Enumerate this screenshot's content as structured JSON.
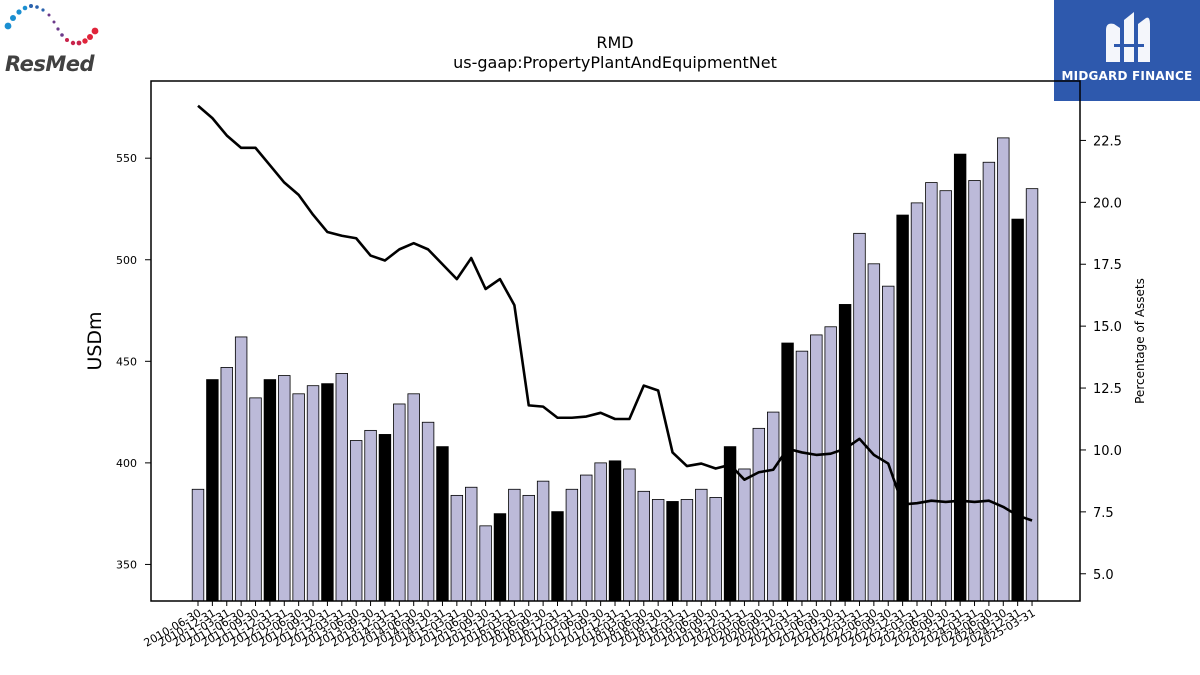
{
  "brand": {
    "company_logo_text": "ResMed",
    "watermark_text": "MIDGARD FINANCE",
    "badge_color": "#2e59ad",
    "logo_dot_colors": [
      "#1b8fd1",
      "#2a62ad",
      "#6b3a8a",
      "#c8234b",
      "#e0243a"
    ]
  },
  "chart_data": {
    "type": "bar",
    "title": "RMD",
    "subtitle": "us-gaap:PropertyPlantAndEquipmentNet",
    "ylabel": "USDm",
    "y2label": "Percentage of Assets",
    "ylim": [
      332,
      588
    ],
    "y2lim": [
      3.9,
      24.9
    ],
    "yticks": [
      350,
      400,
      450,
      500,
      550
    ],
    "y2ticks": [
      "5.0",
      "7.5",
      "10.0",
      "12.5",
      "15.0",
      "17.5",
      "20.0",
      "22.5"
    ],
    "bar_colors": {
      "default": "#bcbad9",
      "highlight": "#000000"
    },
    "line_color": "#000000",
    "categories": [
      "2010-06-30",
      "2010-12-31",
      "2011-03-31",
      "2011-06-30",
      "2011-09-30",
      "2011-12-31",
      "2012-03-31",
      "2012-06-30",
      "2012-09-30",
      "2012-12-31",
      "2013-03-31",
      "2013-06-30",
      "2013-09-30",
      "2013-12-31",
      "2014-03-31",
      "2014-06-30",
      "2014-09-30",
      "2014-12-31",
      "2015-03-31",
      "2015-06-30",
      "2015-09-30",
      "2015-12-31",
      "2016-03-31",
      "2016-06-30",
      "2016-09-30",
      "2016-12-31",
      "2017-03-31",
      "2017-06-30",
      "2017-09-30",
      "2017-12-31",
      "2018-03-31",
      "2018-06-30",
      "2018-09-30",
      "2018-12-31",
      "2019-03-31",
      "2019-06-30",
      "2019-09-30",
      "2019-12-31",
      "2020-03-31",
      "2020-06-30",
      "2020-09-30",
      "2020-12-31",
      "2021-03-31",
      "2021-06-30",
      "2021-09-30",
      "2021-12-31",
      "2022-03-31",
      "2022-06-30",
      "2022-09-30",
      "2022-12-31",
      "2023-03-31",
      "2023-06-30",
      "2023-09-30",
      "2023-12-31",
      "2024-03-31",
      "2024-06-30",
      "2024-09-30",
      "2024-12-31",
      "2025-03-31"
    ],
    "series": [
      {
        "kind": "bar",
        "values": [
          387,
          441,
          447,
          462,
          432,
          441,
          443,
          434,
          438,
          439,
          444,
          411,
          416,
          414,
          429,
          434,
          420,
          408,
          384,
          388,
          369,
          375,
          387,
          384,
          391,
          376,
          387,
          394,
          400,
          401,
          397,
          386,
          382,
          381,
          382,
          387,
          383,
          408,
          397,
          417,
          425,
          459,
          455,
          463,
          467,
          478,
          513,
          498,
          487,
          522,
          528,
          538,
          534,
          552,
          539,
          548,
          560,
          520,
          535
        ],
        "highlight": [
          false,
          true,
          false,
          false,
          false,
          true,
          false,
          false,
          false,
          true,
          false,
          false,
          false,
          true,
          false,
          false,
          false,
          true,
          false,
          false,
          false,
          true,
          false,
          false,
          false,
          true,
          false,
          false,
          false,
          true,
          false,
          false,
          false,
          true,
          false,
          false,
          false,
          true,
          false,
          false,
          false,
          true,
          false,
          false,
          false,
          true,
          false,
          false,
          false,
          true,
          false,
          false,
          false,
          true,
          false,
          false,
          false,
          true,
          false
        ]
      },
      {
        "kind": "line",
        "axis": "right",
        "values": [
          23.9,
          23.4,
          22.7,
          22.2,
          22.2,
          21.5,
          20.8,
          20.3,
          19.5,
          18.8,
          18.65,
          18.55,
          17.85,
          17.65,
          18.1,
          18.35,
          18.1,
          17.5,
          16.9,
          17.75,
          16.5,
          16.9,
          15.85,
          11.8,
          11.75,
          11.3,
          11.3,
          11.35,
          11.5,
          11.25,
          11.25,
          12.6,
          12.4,
          9.9,
          9.35,
          9.45,
          9.25,
          9.4,
          8.8,
          9.1,
          9.2,
          10.05,
          9.9,
          9.8,
          9.85,
          10.05,
          10.45,
          9.8,
          9.45,
          7.8,
          7.85,
          7.95,
          7.9,
          7.95,
          7.9,
          7.95,
          7.7,
          7.35,
          7.15
        ]
      }
    ],
    "grid": false,
    "legend": "none"
  }
}
